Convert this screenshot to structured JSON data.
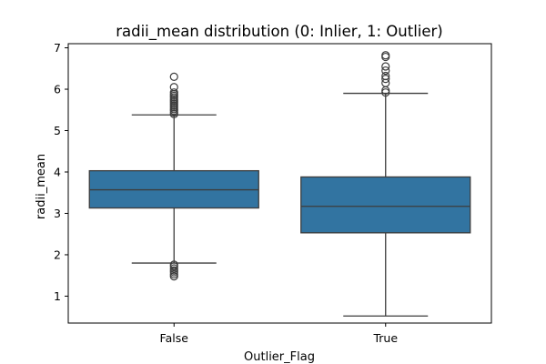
{
  "chart_data": {
    "type": "box",
    "title": "radii_mean distribution (0: Inlier, 1: Outlier)",
    "xlabel": "Outlier_Flag",
    "ylabel": "radii_mean",
    "categories": [
      "False",
      "True"
    ],
    "ylim": [
      0.35,
      7.1
    ],
    "yticks": [
      1,
      2,
      3,
      4,
      5,
      6,
      7
    ],
    "grid": false,
    "box_color": "#3274a1",
    "line_color": "#3d3d3d",
    "boxes": [
      {
        "category": "False",
        "whisker_low": 1.8,
        "q1": 3.13,
        "median": 3.57,
        "q3": 4.03,
        "whisker_high": 5.38,
        "fliers_high": [
          5.4,
          5.44,
          5.48,
          5.52,
          5.56,
          5.6,
          5.64,
          5.68,
          5.72,
          5.76,
          5.8,
          5.84,
          5.88,
          5.92,
          6.05,
          6.3
        ],
        "fliers_low": [
          1.48,
          1.53,
          1.58,
          1.62,
          1.67,
          1.72,
          1.76
        ]
      },
      {
        "category": "True",
        "whisker_low": 0.52,
        "q1": 2.53,
        "median": 3.17,
        "q3": 3.88,
        "whisker_high": 5.9,
        "fliers_high": [
          5.92,
          5.97,
          6.15,
          6.25,
          6.32,
          6.45,
          6.55,
          6.78,
          6.82
        ],
        "fliers_low": []
      }
    ]
  }
}
